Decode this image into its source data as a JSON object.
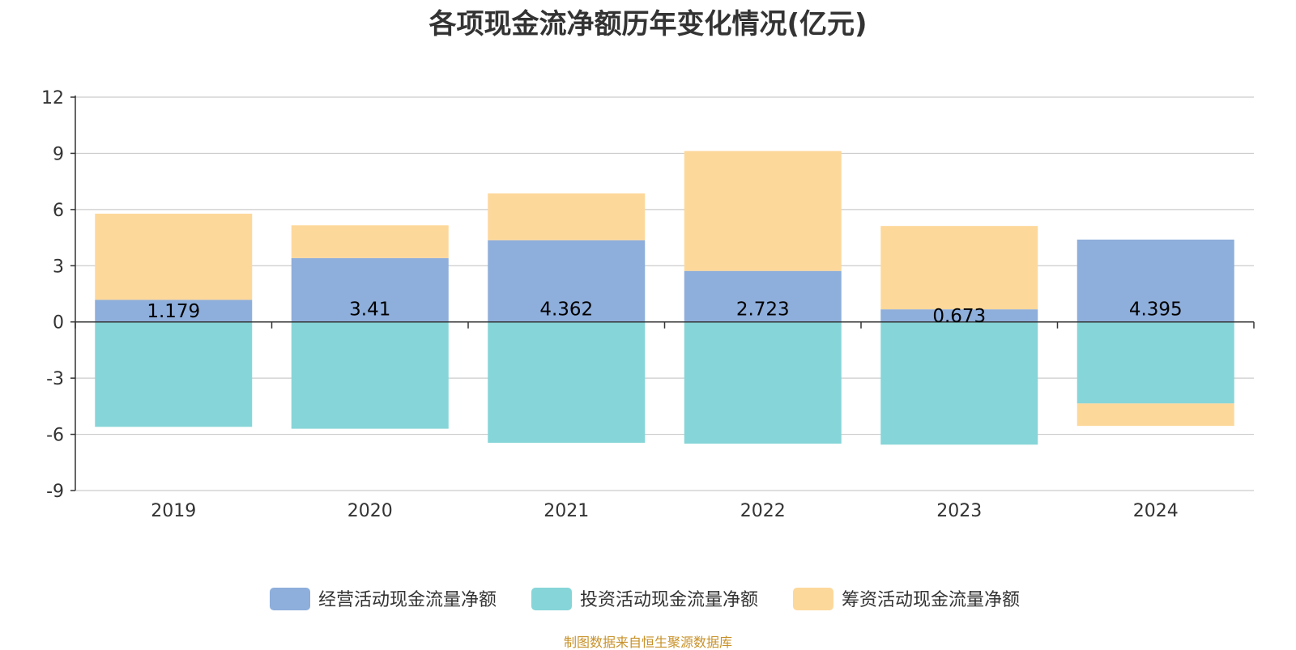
{
  "chart_data": {
    "type": "bar",
    "stacked": true,
    "title": "各项现金流净额历年变化情况(亿元)",
    "categories": [
      "2019",
      "2020",
      "2021",
      "2022",
      "2023",
      "2024"
    ],
    "series": [
      {
        "name": "经营活动现金流量净额",
        "color": "#8eaedb",
        "values": [
          1.179,
          3.41,
          4.362,
          2.723,
          0.673,
          4.395
        ],
        "labels": [
          "1.179",
          "3.41",
          "4.362",
          "2.723",
          "0.673",
          "4.395"
        ]
      },
      {
        "name": "投资活动现金流量净额",
        "color": "#86d5d8",
        "values": [
          -5.6,
          -5.7,
          -6.45,
          -6.5,
          -6.55,
          -4.35
        ]
      },
      {
        "name": "筹资活动现金流量净额",
        "color": "#fdd89b",
        "values": [
          4.6,
          1.75,
          2.5,
          6.4,
          4.45,
          -1.2
        ]
      }
    ],
    "yaxis": {
      "min": -9,
      "max": 12,
      "ticks": [
        12,
        9,
        6,
        3,
        0,
        -3,
        -6,
        -9
      ]
    },
    "grid": true,
    "legend_position": "bottom-center"
  },
  "source": "制图数据来自恒生聚源数据库"
}
